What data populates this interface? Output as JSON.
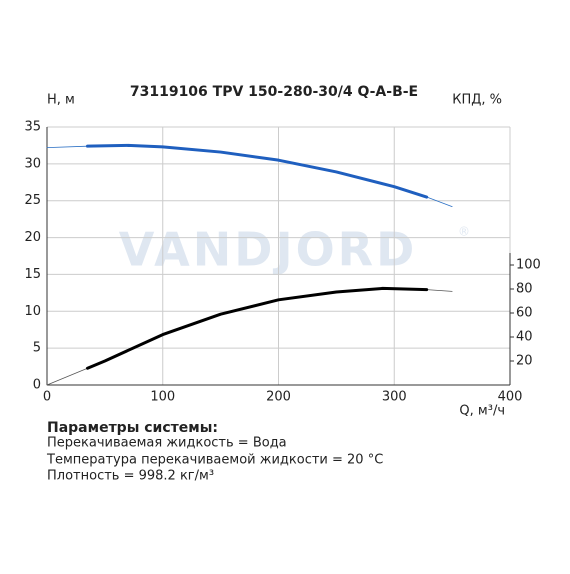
{
  "chart_data": {
    "type": "line",
    "title": "73119106 TPV 150-280-30/4 Q-A-B-E",
    "ylabel": "H, м",
    "y2label": "КПД, %",
    "xlabel": "Q, м³/ч",
    "watermark": "VANDJORD",
    "watermark_mark": "®",
    "xlim": [
      0,
      400
    ],
    "xticks": [
      0,
      100,
      200,
      300,
      400
    ],
    "ylim": [
      0,
      35
    ],
    "yticks": [
      0,
      5,
      10,
      15,
      20,
      25,
      30,
      35
    ],
    "y2lim": [
      0,
      215
    ],
    "y2ticks": [
      20,
      40,
      60,
      80,
      100
    ],
    "grid": true,
    "series": [
      {
        "color": "#2a6fc4",
        "line_width": 0.8,
        "x": [
          0,
          35,
          70,
          100,
          150,
          200,
          250,
          300,
          328,
          350
        ],
        "values": [
          32.2,
          32.4,
          32.5,
          32.3,
          31.6,
          30.5,
          28.9,
          26.9,
          25.5,
          24.2
        ]
      },
      {
        "color": "#1f5fbf",
        "line_width": 3,
        "x": [
          35,
          70,
          100,
          150,
          200,
          250,
          300,
          328
        ],
        "values": [
          32.4,
          32.5,
          32.3,
          31.6,
          30.5,
          28.9,
          26.9,
          25.5
        ]
      },
      {
        "color": "#555555",
        "line_width": 0.8,
        "axis": "y2",
        "x": [
          0,
          35,
          50,
          100,
          150,
          200,
          250,
          290,
          328,
          350
        ],
        "values": [
          0,
          14,
          20,
          42,
          59,
          71,
          77.5,
          80.5,
          79.5,
          78
        ]
      },
      {
        "color": "#000000",
        "line_width": 3,
        "axis": "y2",
        "x": [
          35,
          50,
          100,
          150,
          200,
          250,
          290,
          328
        ],
        "values": [
          14,
          20,
          42,
          59,
          71,
          77.5,
          80.5,
          79.5
        ]
      }
    ]
  },
  "params": {
    "heading": "Параметры системы:",
    "lines": [
      "Перекачиваемая жидкость = Вода",
      "Температура перекачиваемой жидкости = 20 °C",
      "Плотность = 998.2 кг/м³"
    ]
  }
}
